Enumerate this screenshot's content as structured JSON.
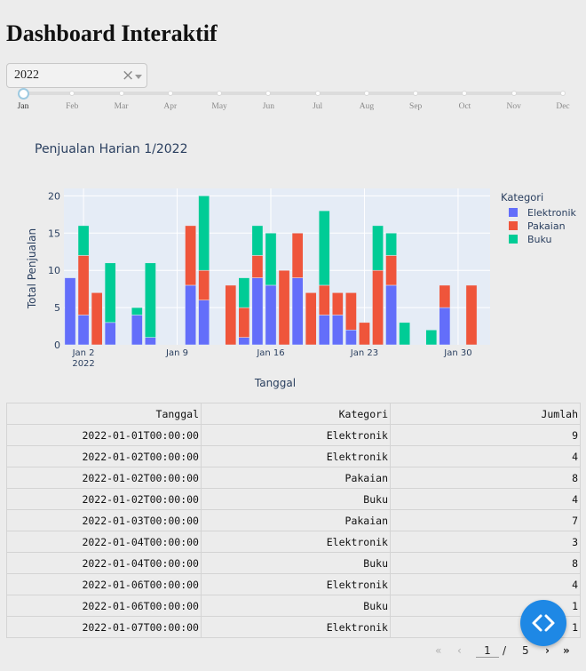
{
  "header": {
    "title": "Dashboard Interaktif"
  },
  "year_dropdown": {
    "selected": "2022",
    "clear_symbol": "×"
  },
  "month_slider": {
    "months": [
      "Jan",
      "Feb",
      "Mar",
      "Apr",
      "May",
      "Jun",
      "Jul",
      "Aug",
      "Sep",
      "Oct",
      "Nov",
      "Dec"
    ],
    "selected_index": 0
  },
  "chart_data": {
    "type": "bar",
    "stacked": true,
    "title": "Penjualan Harian 1/2022",
    "xlabel": "Tanggal",
    "ylabel": "Total Penjualan",
    "legend_title": "Kategori",
    "legend_position": "right",
    "ylim": [
      0,
      21
    ],
    "yticks": [
      0,
      5,
      10,
      15,
      20
    ],
    "xticks": [
      {
        "day": 2,
        "label": "Jan 2",
        "sublabel": "2022"
      },
      {
        "day": 9,
        "label": "Jan 9"
      },
      {
        "day": 16,
        "label": "Jan 16"
      },
      {
        "day": 23,
        "label": "Jan 23"
      },
      {
        "day": 30,
        "label": "Jan 30"
      }
    ],
    "days": [
      1,
      2,
      3,
      4,
      5,
      6,
      7,
      8,
      9,
      10,
      11,
      12,
      13,
      14,
      15,
      16,
      17,
      18,
      19,
      20,
      21,
      22,
      23,
      24,
      25,
      26,
      27,
      28,
      29,
      30,
      31
    ],
    "series": [
      {
        "name": "Elektronik",
        "color": "#636efa",
        "values": [
          9,
          4,
          0,
          3,
          0,
          4,
          1,
          0,
          0,
          8,
          6,
          0,
          0,
          1,
          9,
          8,
          0,
          9,
          0,
          4,
          4,
          2,
          0,
          0,
          8,
          0,
          0,
          0,
          5,
          0,
          0
        ]
      },
      {
        "name": "Pakaian",
        "color": "#ef553b",
        "values": [
          0,
          8,
          7,
          0,
          0,
          0,
          0,
          0,
          0,
          8,
          4,
          0,
          8,
          4,
          3,
          0,
          10,
          6,
          7,
          4,
          3,
          5,
          3,
          10,
          4,
          0,
          0,
          0,
          3,
          0,
          8
        ]
      },
      {
        "name": "Buku",
        "color": "#00cc96",
        "values": [
          0,
          4,
          0,
          8,
          0,
          1,
          10,
          0,
          0,
          0,
          10,
          0,
          0,
          4,
          4,
          7,
          0,
          0,
          0,
          10,
          0,
          0,
          0,
          6,
          3,
          3,
          0,
          2,
          0,
          0,
          0
        ]
      }
    ]
  },
  "table": {
    "columns": [
      "Tanggal",
      "Kategori",
      "Jumlah"
    ],
    "rows": [
      [
        "2022-01-01T00:00:00",
        "Elektronik",
        "9"
      ],
      [
        "2022-01-02T00:00:00",
        "Elektronik",
        "4"
      ],
      [
        "2022-01-02T00:00:00",
        "Pakaian",
        "8"
      ],
      [
        "2022-01-02T00:00:00",
        "Buku",
        "4"
      ],
      [
        "2022-01-03T00:00:00",
        "Pakaian",
        "7"
      ],
      [
        "2022-01-04T00:00:00",
        "Elektronik",
        "3"
      ],
      [
        "2022-01-04T00:00:00",
        "Buku",
        "8"
      ],
      [
        "2022-01-06T00:00:00",
        "Elektronik",
        "4"
      ],
      [
        "2022-01-06T00:00:00",
        "Buku",
        "1"
      ],
      [
        "2022-01-07T00:00:00",
        "Elektronik",
        "1"
      ]
    ]
  },
  "pagination": {
    "first": "«",
    "prev": "‹",
    "current_page": "1",
    "separator": "/",
    "total_pages": "5",
    "next": "›",
    "last": "»"
  },
  "icons": {
    "fab": "code-brackets-icon"
  }
}
